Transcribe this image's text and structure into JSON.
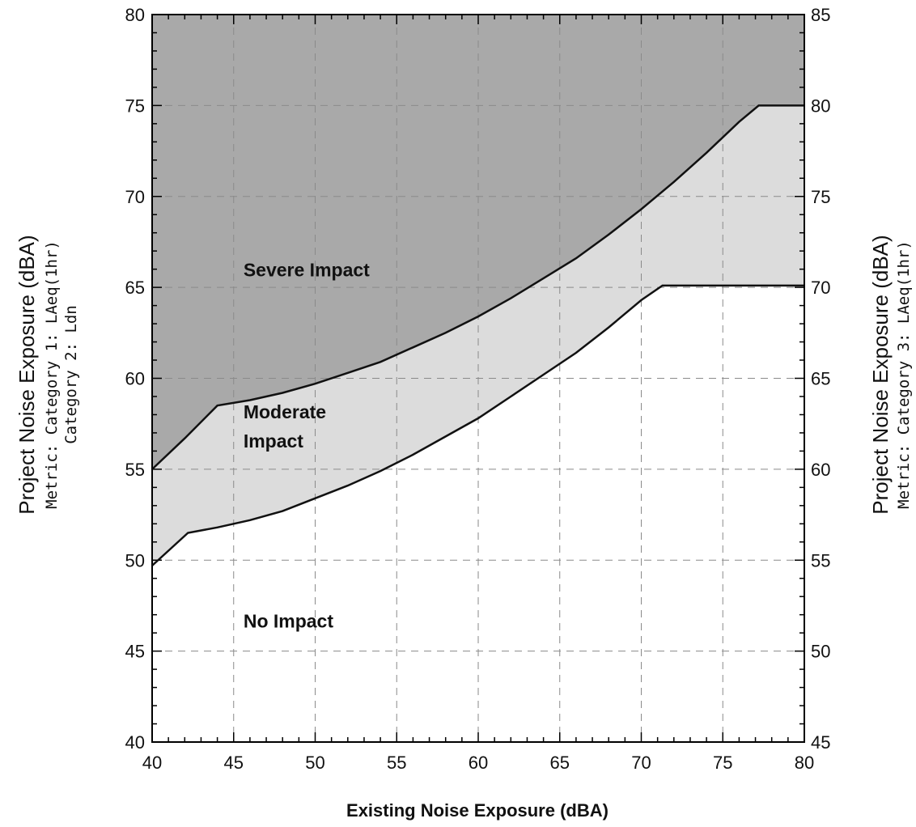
{
  "chart_data": {
    "type": "area",
    "title": "",
    "xlabel": "Existing Noise Exposure (dBA)",
    "ylabel_left": {
      "main": "Project Noise Exposure (dBA)",
      "line2": "Metric: Category 1: LAeq(1hr)",
      "line3": "Category 2: Ldn"
    },
    "ylabel_right": {
      "main": "Project Noise Exposure (dBA)",
      "line2": "Metric: Category 3: LAeq(1hr)"
    },
    "xlim": [
      40,
      80
    ],
    "ylim": [
      40,
      80
    ],
    "ylim_right": [
      45,
      85
    ],
    "x_ticks": [
      40,
      45,
      50,
      55,
      60,
      65,
      70,
      75,
      80
    ],
    "y_ticks": [
      40,
      45,
      50,
      55,
      60,
      65,
      70,
      75,
      80
    ],
    "y_ticks_right": [
      45,
      50,
      55,
      60,
      65,
      70,
      75,
      80,
      85
    ],
    "grid": true,
    "regions": [
      {
        "label": "Severe Impact",
        "color": "#a9a9a9",
        "label_x": 45.6,
        "label_y": 65.6
      },
      {
        "label_lines": [
          "Moderate",
          "Impact"
        ],
        "color": "#dcdcdc",
        "label_x": 45.6,
        "label_y": 57.8
      },
      {
        "label": "No Impact",
        "color": "#ffffff",
        "label_x": 45.6,
        "label_y": 46.3
      }
    ],
    "series": [
      {
        "boundary": "severe-threshold",
        "x": [
          40,
          42,
          44,
          46,
          48,
          50,
          52,
          54,
          56,
          58,
          60,
          62,
          64,
          66,
          68,
          70,
          72,
          74,
          76,
          77.2,
          80
        ],
        "y": [
          55.0,
          56.7,
          58.5,
          58.8,
          59.2,
          59.7,
          60.3,
          60.9,
          61.7,
          62.5,
          63.4,
          64.4,
          65.5,
          66.6,
          67.9,
          69.3,
          70.8,
          72.4,
          74.1,
          75.0,
          75.0
        ]
      },
      {
        "boundary": "moderate-threshold",
        "x": [
          40,
          42.2,
          44,
          46,
          48,
          50,
          52,
          54,
          56,
          58,
          60,
          62,
          64,
          66,
          68,
          70,
          71.3,
          80
        ],
        "y": [
          49.7,
          51.5,
          51.8,
          52.2,
          52.7,
          53.4,
          54.1,
          54.9,
          55.8,
          56.8,
          57.8,
          59.0,
          60.2,
          61.4,
          62.8,
          64.3,
          65.1,
          65.1
        ]
      }
    ]
  }
}
